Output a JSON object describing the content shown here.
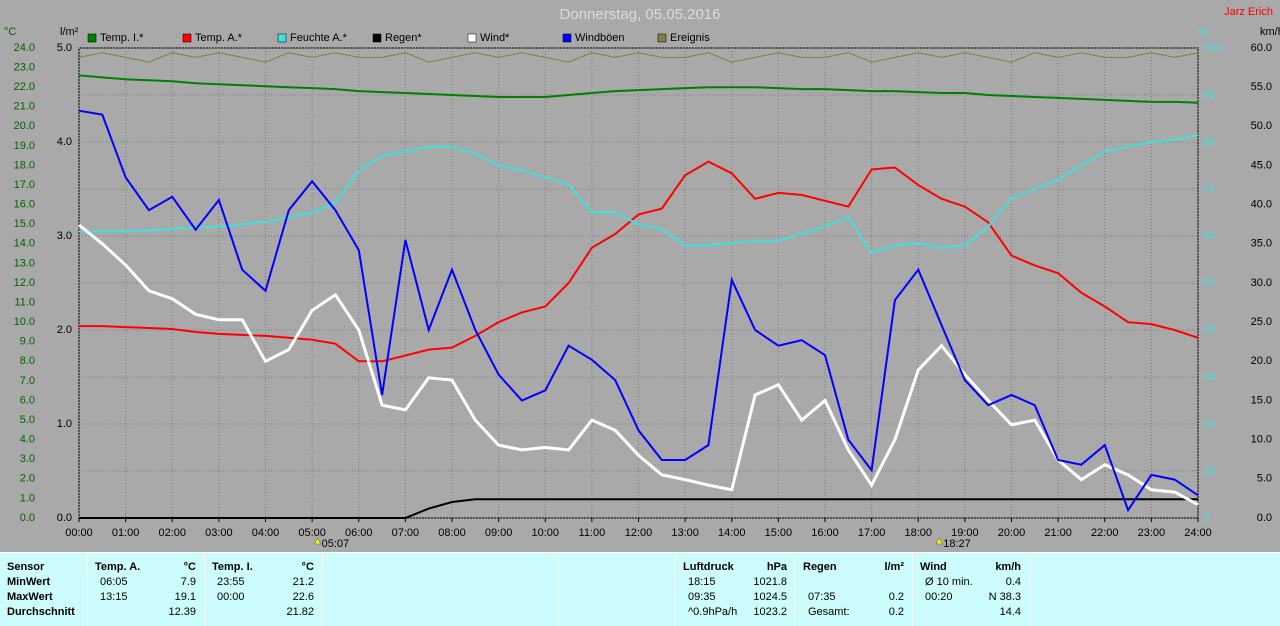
{
  "chart_data": {
    "type": "line",
    "title": "Donnerstag, 05.05.2016",
    "author": "Jarz Erich",
    "axes": {
      "temp": {
        "label": "°C",
        "lim": [
          0,
          24
        ],
        "ticks": [
          {
            "value": 0,
            "label": "0.0"
          },
          {
            "value": 1,
            "label": "1.0"
          },
          {
            "value": 2,
            "label": "2.0"
          },
          {
            "value": 3,
            "label": "3.0"
          },
          {
            "value": 4,
            "label": "4.0"
          },
          {
            "value": 5,
            "label": "5.0"
          },
          {
            "value": 6,
            "label": "6.0"
          },
          {
            "value": 7,
            "label": "7.0"
          },
          {
            "value": 8,
            "label": "8.0"
          },
          {
            "value": 9,
            "label": "9.0"
          },
          {
            "value": 10,
            "label": "10.0"
          },
          {
            "value": 11,
            "label": "11.0"
          },
          {
            "value": 12,
            "label": "12.0"
          },
          {
            "value": 13,
            "label": "13.0"
          },
          {
            "value": 14,
            "label": "14.0"
          },
          {
            "value": 15,
            "label": "15.0"
          },
          {
            "value": 16,
            "label": "16.0"
          },
          {
            "value": 17,
            "label": "17.0"
          },
          {
            "value": 18,
            "label": "18.0"
          },
          {
            "value": 19,
            "label": "19.0"
          },
          {
            "value": 20,
            "label": "20.0"
          },
          {
            "value": 21,
            "label": "21.0"
          },
          {
            "value": 22,
            "label": "22.0"
          },
          {
            "value": 23,
            "label": "23.0"
          },
          {
            "value": 24,
            "label": "24.0"
          }
        ]
      },
      "rain": {
        "label": "l/m²",
        "lim": [
          0,
          5
        ],
        "ticks": [
          {
            "value": 0,
            "label": "0.0"
          },
          {
            "value": 1,
            "label": "1.0"
          },
          {
            "value": 2,
            "label": "2.0"
          },
          {
            "value": 3,
            "label": "3.0"
          },
          {
            "value": 4,
            "label": "4.0"
          },
          {
            "value": 5,
            "label": "5.0"
          }
        ]
      },
      "hum": {
        "label": "%",
        "lim": [
          0,
          100
        ],
        "ticks": [
          0,
          10,
          20,
          30,
          40,
          50,
          60,
          70,
          80,
          90,
          100
        ]
      },
      "wind": {
        "label": "km/h",
        "lim": [
          0,
          60
        ],
        "ticks": [
          {
            "value": 0,
            "label": "0.0"
          },
          {
            "value": 5,
            "label": "5.0"
          },
          {
            "value": 10,
            "label": "10.0"
          },
          {
            "value": 15,
            "label": "15.0"
          },
          {
            "value": 20,
            "label": "20.0"
          },
          {
            "value": 25,
            "label": "25.0"
          },
          {
            "value": 30,
            "label": "30.0"
          },
          {
            "value": 35,
            "label": "35.0"
          },
          {
            "value": 40,
            "label": "40.0"
          },
          {
            "value": 45,
            "label": "45.0"
          },
          {
            "value": 50,
            "label": "50.0"
          },
          {
            "value": 55,
            "label": "55.0"
          },
          {
            "value": 60,
            "label": "60.0"
          }
        ]
      }
    },
    "xlim": [
      0,
      24
    ],
    "xticks": [
      {
        "value": 0,
        "label": "00:00"
      },
      {
        "value": 1,
        "label": "01:00"
      },
      {
        "value": 2,
        "label": "02:00"
      },
      {
        "value": 3,
        "label": "03:00"
      },
      {
        "value": 4,
        "label": "04:00"
      },
      {
        "value": 5,
        "label": "05:00"
      },
      {
        "value": 6,
        "label": "06:00"
      },
      {
        "value": 7,
        "label": "07:00"
      },
      {
        "value": 8,
        "label": "08:00"
      },
      {
        "value": 9,
        "label": "09:00"
      },
      {
        "value": 10,
        "label": "10:00"
      },
      {
        "value": 11,
        "label": "11:00"
      },
      {
        "value": 12,
        "label": "12:00"
      },
      {
        "value": 13,
        "label": "13:00"
      },
      {
        "value": 14,
        "label": "14:00"
      },
      {
        "value": 15,
        "label": "15:00"
      },
      {
        "value": 16,
        "label": "16:00"
      },
      {
        "value": 17,
        "label": "17:00"
      },
      {
        "value": 18,
        "label": "18:00"
      },
      {
        "value": 19,
        "label": "19:00"
      },
      {
        "value": 20,
        "label": "20:00"
      },
      {
        "value": 21,
        "label": "21:00"
      },
      {
        "value": 22,
        "label": "22:00"
      },
      {
        "value": 23,
        "label": "23:00"
      },
      {
        "value": 24,
        "label": "24:00"
      }
    ],
    "grid": true,
    "annotations": [
      {
        "x": 5.117,
        "label": "05:07"
      },
      {
        "x": 18.45,
        "label": "18:27"
      }
    ],
    "x": [
      0,
      0.5,
      1,
      1.5,
      2,
      2.5,
      3,
      3.5,
      4,
      4.5,
      5,
      5.5,
      6,
      6.5,
      7,
      7.5,
      8,
      8.5,
      9,
      9.5,
      10,
      10.5,
      11,
      11.5,
      12,
      12.5,
      13,
      13.5,
      14,
      14.5,
      15,
      15.5,
      16,
      16.5,
      17,
      17.5,
      18,
      18.5,
      19,
      19.5,
      20,
      20.5,
      21,
      21.5,
      22,
      22.5,
      23,
      23.5,
      24
    ],
    "series": [
      {
        "name": "Temp. I.*",
        "color": "#008000",
        "axis": "temp",
        "values": [
          22.6,
          22.5,
          22.4,
          22.35,
          22.3,
          22.2,
          22.15,
          22.1,
          22.05,
          22.0,
          21.95,
          21.9,
          21.8,
          21.75,
          21.7,
          21.65,
          21.6,
          21.55,
          21.5,
          21.5,
          21.5,
          21.6,
          21.7,
          21.8,
          21.85,
          21.9,
          21.95,
          22.0,
          22.0,
          22.0,
          21.95,
          21.9,
          21.9,
          21.85,
          21.8,
          21.8,
          21.75,
          21.7,
          21.7,
          21.6,
          21.55,
          21.5,
          21.45,
          21.4,
          21.35,
          21.3,
          21.25,
          21.25,
          21.2
        ]
      },
      {
        "name": "Temp. A.*",
        "color": "#ff0000",
        "axis": "temp",
        "values": [
          9.8,
          9.8,
          9.75,
          9.7,
          9.65,
          9.5,
          9.4,
          9.35,
          9.3,
          9.2,
          9.1,
          8.9,
          8.0,
          8.0,
          8.3,
          8.6,
          8.7,
          9.3,
          10.0,
          10.5,
          10.8,
          12.0,
          13.8,
          14.5,
          15.5,
          15.8,
          17.5,
          18.2,
          17.6,
          16.3,
          16.6,
          16.5,
          16.2,
          15.9,
          17.8,
          17.9,
          17.0,
          16.3,
          15.9,
          15.1,
          13.4,
          12.9,
          12.5,
          11.5,
          10.8,
          10.0,
          9.9,
          9.6,
          9.2
        ]
      },
      {
        "name": "Feuchte A.*",
        "color": "#40e0e0",
        "axis": "hum",
        "values": [
          61,
          61,
          61,
          61.2,
          61.5,
          61.8,
          62,
          62.5,
          63,
          64,
          65,
          67,
          74,
          77,
          78,
          79,
          79,
          77.5,
          75,
          74,
          72.5,
          71,
          65,
          65,
          62.5,
          61.5,
          58,
          58,
          58.5,
          59,
          59,
          60.5,
          62,
          64,
          56.5,
          58,
          58.5,
          57.5,
          58,
          62,
          68,
          70,
          72,
          75,
          78,
          79,
          80,
          80.5,
          81.5
        ]
      },
      {
        "name": "Regen*",
        "color": "#000000",
        "axis": "rain",
        "values": [
          0,
          0,
          0,
          0,
          0,
          0,
          0,
          0,
          0,
          0,
          0,
          0,
          0,
          0,
          0,
          0.1,
          0.17,
          0.2,
          0.2,
          0.2,
          0.2,
          0.2,
          0.2,
          0.2,
          0.2,
          0.2,
          0.2,
          0.2,
          0.2,
          0.2,
          0.2,
          0.2,
          0.2,
          0.2,
          0.2,
          0.2,
          0.2,
          0.2,
          0.2,
          0.2,
          0.2,
          0.2,
          0.2,
          0.2,
          0.2,
          0.2,
          0.2,
          0.2,
          0.2
        ]
      },
      {
        "name": "Wind*",
        "color": "#ffffff",
        "axis": "wind",
        "values": [
          37.4,
          35,
          32.3,
          29,
          28,
          26,
          25.3,
          25.3,
          20,
          21.5,
          26.5,
          28.5,
          24,
          14.4,
          13.8,
          17.9,
          17.6,
          12.5,
          9.3,
          8.7,
          9,
          8.7,
          12.5,
          11.2,
          8,
          5.5,
          4.9,
          4.2,
          3.6,
          15.7,
          17,
          12.5,
          15,
          8.7,
          4.2,
          10,
          18.9,
          22,
          18.3,
          15,
          11.9,
          12.5,
          7.4,
          4.9,
          6.8,
          5.5,
          3.6,
          3.3,
          1.7
        ]
      },
      {
        "name": "Windböen",
        "color": "#0000ff",
        "axis": "wind",
        "values": [
          52,
          51.5,
          43.5,
          39.3,
          41,
          36.8,
          40.6,
          31.7,
          29,
          39.3,
          43,
          39.3,
          34.2,
          15.7,
          35.5,
          24,
          31.7,
          24,
          18.3,
          15,
          16.3,
          22,
          20.2,
          17.6,
          11.2,
          7.4,
          7.4,
          9.3,
          30.4,
          24,
          22,
          22.7,
          20.8,
          10,
          6.1,
          27.8,
          31.7,
          24.6,
          17.6,
          14.4,
          15.7,
          14.4,
          7.4,
          6.8,
          9.3,
          1,
          5.5,
          4.9,
          2.9
        ]
      },
      {
        "name": "Ereignis",
        "color": "#808040",
        "axis": "hum",
        "values": [
          98,
          99,
          98,
          97,
          99,
          98,
          99,
          98,
          97,
          99,
          98,
          99,
          98,
          98,
          99,
          97,
          98,
          99,
          98,
          99,
          98,
          97,
          99,
          98,
          99,
          98,
          98,
          99,
          97,
          98,
          99,
          98,
          98,
          99,
          97,
          98,
          99,
          98,
          99,
          98,
          97,
          99,
          98,
          99,
          98,
          98,
          99,
          98,
          99
        ]
      }
    ]
  },
  "stats": {
    "panels": [
      {
        "header": [
          "Sensor"
        ],
        "rows": [
          [
            "MinWert"
          ],
          [
            "MaxWert"
          ],
          [
            "Durchschnitt"
          ]
        ]
      },
      {
        "header": [
          "Temp. A.",
          "°C"
        ],
        "rows": [
          [
            "06:05",
            "7.9"
          ],
          [
            "13:15",
            "19.1"
          ],
          [
            "12.39"
          ]
        ]
      },
      {
        "header": [
          "Temp. I.",
          "°C"
        ],
        "rows": [
          [
            "23:55",
            "21.2"
          ],
          [
            "00:00",
            "22.6"
          ],
          [
            "21.82"
          ]
        ]
      },
      {
        "header": [
          "Luftdruck",
          "hPa"
        ],
        "rows": [
          [
            "18:15",
            "1021.8"
          ],
          [
            "09:35",
            "1024.5"
          ],
          [
            "^0.9hPa/h",
            "1023.2"
          ]
        ]
      },
      {
        "header": [
          "Regen",
          "l/m²"
        ],
        "rows": [
          [],
          [
            "07:35",
            "0.2"
          ],
          [
            "Gesamt:",
            "0.2"
          ]
        ]
      },
      {
        "header": [
          "Wind",
          "km/h"
        ],
        "rows": [
          [
            "Ø 10 min.",
            "0.4"
          ],
          [
            "00:20",
            "N 38.3"
          ],
          [
            "14.4"
          ]
        ]
      }
    ]
  }
}
